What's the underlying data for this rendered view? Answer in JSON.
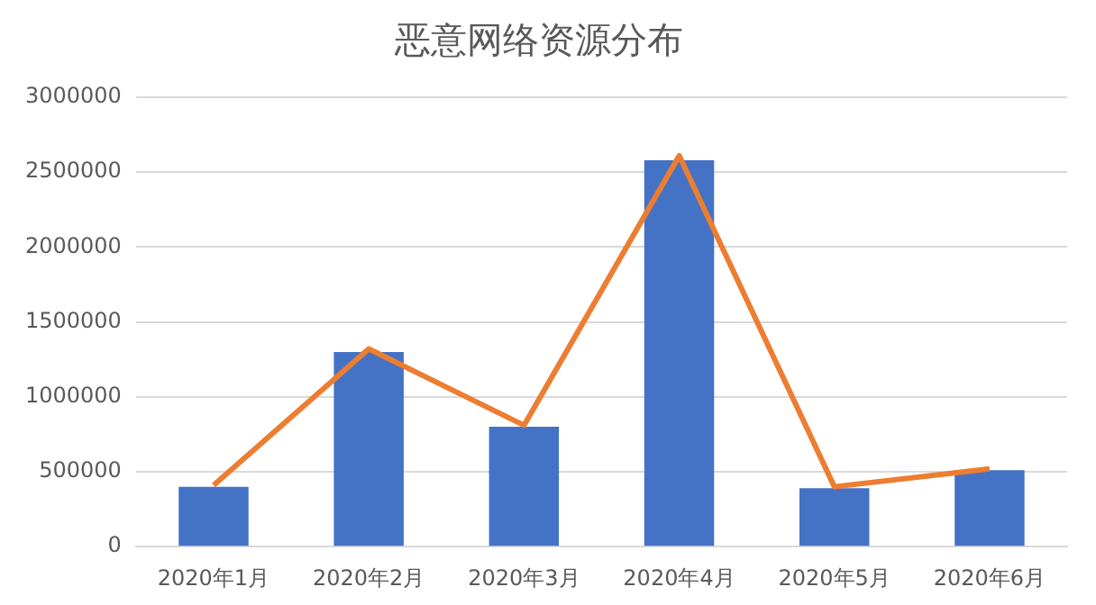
{
  "chart_data": {
    "type": "bar",
    "title": "恶意网络资源分布",
    "categories": [
      "2020年1月",
      "2020年2月",
      "2020年3月",
      "2020年4月",
      "2020年5月",
      "2020年6月"
    ],
    "series": [
      {
        "color": "#4472c4",
        "values": [
          400000,
          1300000,
          800000,
          2580000,
          390000,
          510000
        ]
      },
      {
        "type": "line",
        "color": "#ed7d31",
        "values": [
          410000,
          1320000,
          810000,
          2610000,
          400000,
          520000
        ]
      }
    ],
    "ylim": [
      0,
      3000000
    ],
    "yticks": [
      0,
      500000,
      1000000,
      1500000,
      2000000,
      2500000,
      3000000
    ],
    "grid": "y",
    "legend": false,
    "marker": "none"
  }
}
